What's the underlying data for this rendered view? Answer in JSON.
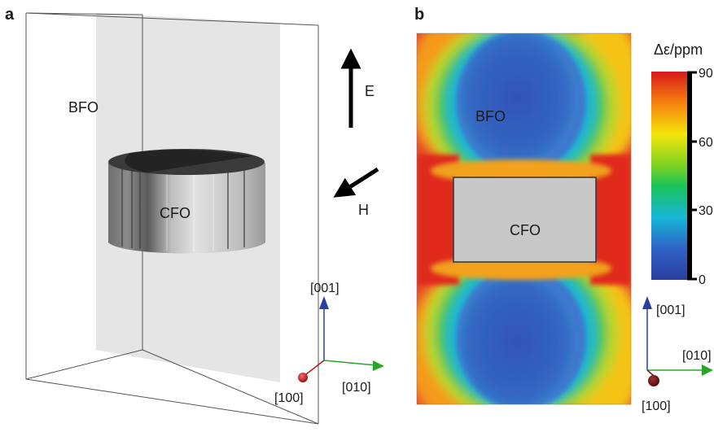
{
  "panel_a": {
    "letter": "a",
    "bfo_label": "BFO",
    "cfo_label": "CFO",
    "e_label": "E",
    "h_label": "H",
    "axis_001": "[001]",
    "axis_010": "[010]",
    "axis_100": "[100]"
  },
  "panel_b": {
    "letter": "b",
    "bfo_label": "BFO",
    "cfo_label": "CFO",
    "axis_001": "[001]",
    "axis_010": "[010]",
    "axis_100": "[100]"
  },
  "colorbar": {
    "title": "Δε/ppm",
    "ticks": [
      "90",
      "60",
      "30",
      "0"
    ],
    "colors": [
      "#d7191c",
      "#f57b0f",
      "#f5e50a",
      "#7ed321",
      "#19c25a",
      "#16b7d6",
      "#2f62c8",
      "#2a3f9e"
    ]
  },
  "colors": {
    "axis_001": "#2b3fa0",
    "axis_010": "#2aa52a",
    "axis_100": "#b01818",
    "cfo_fill": "#c8c8c8",
    "bfo_core": "#2f53b8"
  }
}
